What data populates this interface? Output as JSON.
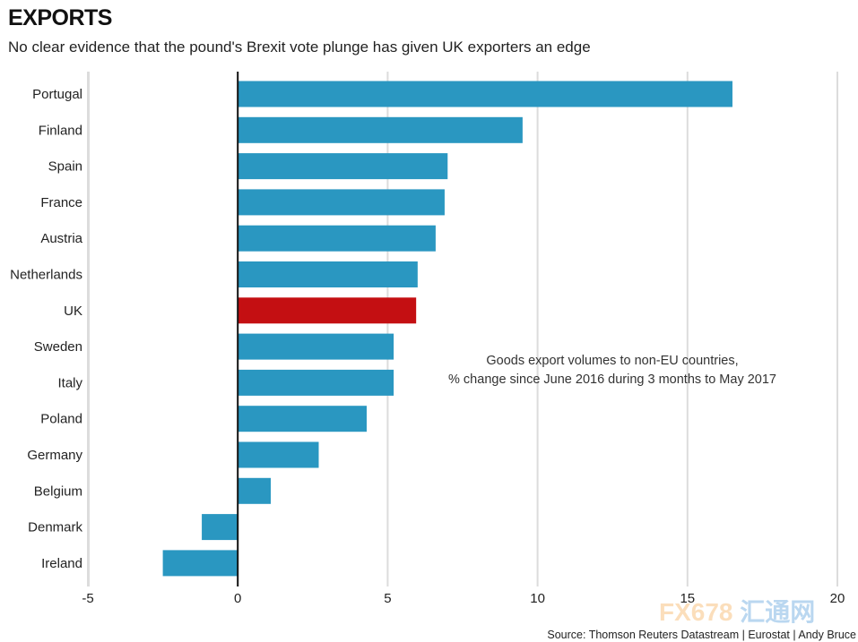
{
  "header": {
    "title": "EXPORTS",
    "subtitle": "No clear evidence that the pound's Brexit vote plunge has given UK exporters an edge"
  },
  "source": "Source: Thomson Reuters Datastream | Eurostat | Andy Bruce",
  "watermark": {
    "text_a": "FX678",
    "text_b": "汇通网"
  },
  "colors": {
    "bar": "#2a97c1",
    "highlight": "#c40f12",
    "grid": "#dcdcdc",
    "zero_line": "#111111"
  },
  "chart_data": {
    "type": "bar",
    "orientation": "horizontal",
    "title": "EXPORTS",
    "subtitle": "No clear evidence that the pound's Brexit vote plunge has given UK exporters an edge",
    "annotation": [
      "Goods export volumes to non-EU countries,",
      "% change since June 2016 during 3 months to May 2017"
    ],
    "categories": [
      "Portugal",
      "Finland",
      "Spain",
      "France",
      "Austria",
      "Netherlands",
      "UK",
      "Sweden",
      "Italy",
      "Poland",
      "Germany",
      "Belgium",
      "Denmark",
      "Ireland"
    ],
    "values": [
      16.5,
      9.5,
      7.0,
      6.9,
      6.6,
      6.0,
      5.95,
      5.2,
      5.2,
      4.3,
      2.7,
      1.1,
      -1.2,
      -2.5
    ],
    "highlight": "UK",
    "xlabel": "",
    "ylabel": "",
    "xlim": [
      -5,
      20
    ],
    "xticks": [
      -5,
      0,
      5,
      10,
      15,
      20
    ],
    "xtick_labels": [
      "-5",
      "0",
      "5",
      "10",
      "15",
      "20"
    ],
    "grid": true,
    "legend": "none"
  }
}
